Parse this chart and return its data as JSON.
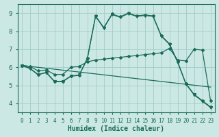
{
  "xlabel": "Humidex (Indice chaleur)",
  "bg_color": "#cce8e4",
  "grid_color": "#a0ccc8",
  "line_color": "#1a6b5a",
  "xlim": [
    -0.5,
    23.5
  ],
  "ylim": [
    3.5,
    9.5
  ],
  "xticks": [
    0,
    1,
    2,
    3,
    4,
    5,
    6,
    7,
    8,
    9,
    10,
    11,
    12,
    13,
    14,
    15,
    16,
    17,
    18,
    19,
    20,
    21,
    22,
    23
  ],
  "yticks": [
    4,
    5,
    6,
    7,
    8,
    9
  ],
  "line1_x": [
    0,
    1,
    2,
    3,
    4,
    5,
    6,
    7,
    8,
    9,
    10,
    11,
    12,
    13,
    14,
    15,
    16,
    17,
    18,
    19,
    20,
    21,
    22,
    23
  ],
  "line1_y": [
    6.1,
    5.95,
    5.6,
    5.7,
    5.2,
    5.2,
    5.5,
    5.55,
    6.5,
    8.85,
    8.2,
    8.95,
    8.8,
    9.0,
    8.85,
    8.9,
    8.85,
    7.75,
    7.3,
    6.3,
    5.1,
    4.5,
    4.15,
    3.8
  ],
  "line2_x": [
    0,
    1,
    2,
    3,
    4,
    5,
    6,
    7,
    8,
    9,
    10,
    11,
    12,
    13,
    14,
    15,
    16,
    17,
    18,
    19,
    20,
    21,
    22,
    23
  ],
  "line2_y": [
    6.1,
    5.93,
    5.58,
    5.72,
    5.22,
    5.22,
    5.52,
    5.57,
    6.45,
    8.82,
    8.17,
    8.92,
    8.77,
    8.97,
    8.82,
    8.87,
    8.82,
    7.72,
    7.27,
    6.27,
    5.07,
    4.47,
    4.12,
    3.77
  ],
  "line3_x": [
    0,
    1,
    2,
    3,
    4,
    5,
    6,
    7,
    8,
    9,
    10,
    11,
    12,
    13,
    14,
    15,
    16,
    17,
    18,
    19,
    20,
    21,
    22,
    23
  ],
  "line3_y": [
    6.1,
    6.05,
    5.8,
    5.85,
    5.6,
    5.6,
    6.0,
    6.05,
    6.3,
    6.4,
    6.45,
    6.5,
    6.55,
    6.6,
    6.65,
    6.7,
    6.75,
    6.8,
    7.05,
    6.4,
    6.35,
    7.0,
    6.95,
    4.15
  ],
  "line4_x": [
    0,
    23
  ],
  "line4_y": [
    6.1,
    4.9
  ]
}
